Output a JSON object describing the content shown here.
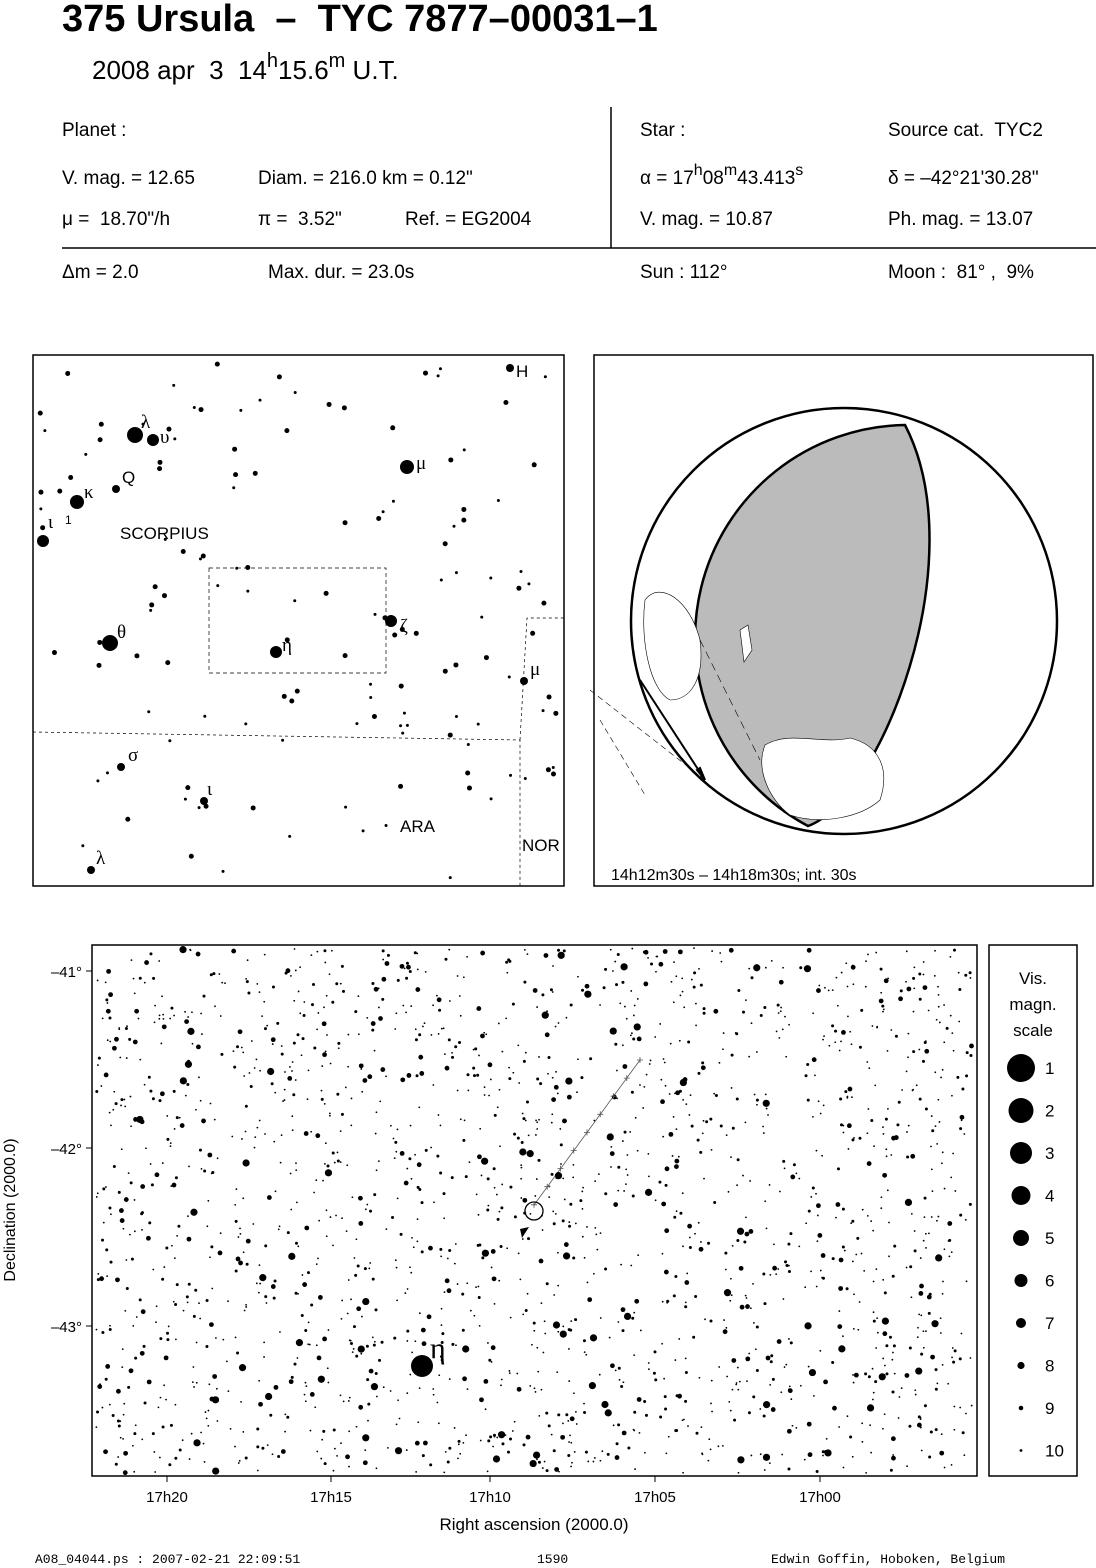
{
  "header": {
    "title": "375 Ursula  –  TYC 7877–00031–1",
    "date": [
      "2008 apr  3  14",
      "h",
      "15.6",
      "m",
      " U.T."
    ]
  },
  "planet": {
    "heading": "Planet :",
    "v_mag": "V. mag. = 12.65",
    "diam": "Diam. = 216.0 km = 0.12\"",
    "motion": "μ =  18.70\"/h",
    "parallax": "π =  3.52\"",
    "ref": "Ref. = EG2004"
  },
  "star": {
    "heading": "Star :",
    "source": "Source cat.  TYC2",
    "ra": [
      "α = 17",
      "h",
      "08",
      "m",
      "43.413",
      "s"
    ],
    "dec": "δ = –42°21'30.28\"",
    "v_mag": "V. mag. = 10.87",
    "ph_mag": "Ph. mag. = 13.07"
  },
  "event": {
    "delta_mag": "Δm = 2.0",
    "max_dur": "Max. dur. = 23.0s",
    "sun": "Sun : 112°",
    "moon": "Moon :  81° ,  9%"
  },
  "finder_map": {
    "labels": [
      "λ",
      "υ",
      "Q",
      "κ",
      "ι",
      "1",
      "SCORPIUS",
      "θ",
      "η",
      "ζ",
      "μ",
      "H",
      "μ",
      "σ",
      "ι",
      "ARA",
      "NOR",
      "λ"
    ]
  },
  "globe": {
    "caption": "14h12m30s – 14h18m30s; int. 30s"
  },
  "star_chart": {
    "y_label": "Declination (2000.0)",
    "x_label": "Right ascension (2000.0)",
    "y_ticks": [
      "–41°",
      "–42°",
      "–43°"
    ],
    "x_ticks": [
      "17h20",
      "17h15",
      "17h10",
      "17h05",
      "17h00"
    ],
    "star_label": "η"
  },
  "legend": {
    "title": [
      "Vis.",
      "magn.",
      "scale"
    ],
    "entries": [
      "1",
      "2",
      "3",
      "4",
      "5",
      "6",
      "7",
      "8",
      "9",
      "10"
    ]
  },
  "footer": {
    "file": "A08_04044.ps : 2007-02-21 22:09:51",
    "page": "1590",
    "author": "Edwin Goffin, Hoboken, Belgium"
  }
}
